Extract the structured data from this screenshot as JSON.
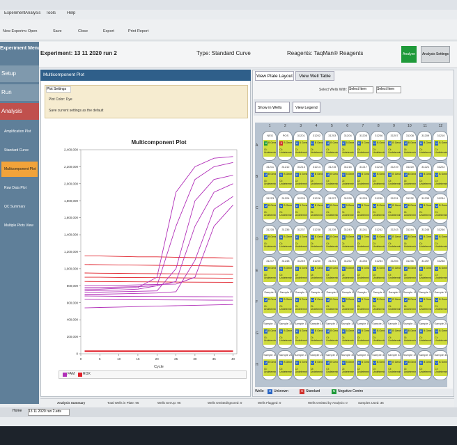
{
  "window": {
    "menu": [
      "Experiment",
      "Analysis",
      "Tools",
      "Help"
    ],
    "toolbar": [
      "New Experiment",
      "Open",
      "Save",
      "Close",
      "Export",
      "Print Report"
    ]
  },
  "header": {
    "experiment": "Experiment: 13 11 2020 run 2",
    "type": "Type: Standard Curve",
    "reagents": "Reagents: TaqMan® Reagents",
    "analyze": "Analyze",
    "settings": "Analysis Settings"
  },
  "sidebar": {
    "title": "Experiment Menu",
    "sections": [
      "Setup",
      "Run",
      "Analysis"
    ],
    "items": [
      "Amplification Plot",
      "Standard Curve",
      "Multicomponent Plot",
      "Raw Data Plot",
      "QC Summary",
      "Multiple Plots View"
    ]
  },
  "left_panel": {
    "title": "Multicomponent Plot",
    "settings_tab": "Plot Settings",
    "plot_color": "Plot Color: Dye",
    "save_default": "Save current settings as the default"
  },
  "plot": {
    "type": "line",
    "title": "Multicomponent Plot",
    "xlabel": "Cycle",
    "x": [
      1,
      5,
      10,
      15,
      20,
      25,
      30,
      35,
      40
    ],
    "xlim": [
      0,
      41
    ],
    "xticks": [
      0,
      5,
      10,
      15,
      20,
      25,
      30,
      35,
      40
    ],
    "ylim": [
      0,
      2400000
    ],
    "yticks": [
      {
        "value": 0,
        "label": "0"
      },
      {
        "value": 200000,
        "label": "200,000"
      },
      {
        "value": 400000,
        "label": "400,000"
      },
      {
        "value": 600000,
        "label": "600,000"
      },
      {
        "value": 800000,
        "label": "800,000"
      },
      {
        "value": 1000000,
        "label": "1,000,000"
      },
      {
        "value": 1200000,
        "label": "1,200,000"
      },
      {
        "value": 1400000,
        "label": "1,400,000"
      },
      {
        "value": 1600000,
        "label": "1,600,000"
      },
      {
        "value": 1800000,
        "label": "1,800,000"
      },
      {
        "value": 2000000,
        "label": "2,000,000"
      },
      {
        "value": 2200000,
        "label": "2,200,000"
      },
      {
        "value": 2400000,
        "label": "2,400,000"
      }
    ],
    "legend": [
      {
        "name": "FAM",
        "color": "#b12fb8"
      },
      {
        "name": "ROX",
        "color": "#e0202a"
      }
    ],
    "series": [
      {
        "color": "#e0202a",
        "values": [
          1150000,
          1150000,
          1145000,
          1140000,
          1140000,
          1135000,
          1130000,
          1130000,
          1125000
        ]
      },
      {
        "color": "#e0202a",
        "values": [
          1050000,
          1048000,
          1045000,
          1043000,
          1040000,
          1038000,
          1035000,
          1032000,
          1030000
        ]
      },
      {
        "color": "#e0202a",
        "values": [
          950000,
          948000,
          946000,
          944000,
          942000,
          940000,
          938000,
          936000,
          935000
        ]
      },
      {
        "color": "#e0202a",
        "values": [
          900000,
          900000,
          898000,
          896000,
          895000,
          893000,
          891000,
          890000,
          888000
        ]
      },
      {
        "color": "#e0202a",
        "values": [
          850000,
          849000,
          848000,
          846000,
          845000,
          843000,
          842000,
          841000,
          840000
        ]
      },
      {
        "color": "#e0202a",
        "values": [
          30000,
          30000,
          30000,
          30000,
          30000,
          30000,
          30000,
          30000,
          30000
        ]
      },
      {
        "color": "#b12fb8",
        "values": [
          760000,
          760000,
          770000,
          780000,
          900000,
          1900000,
          2200000,
          2300000,
          2320000
        ]
      },
      {
        "color": "#b12fb8",
        "values": [
          740000,
          745000,
          750000,
          760000,
          800000,
          1500000,
          2050000,
          2200000,
          2250000
        ]
      },
      {
        "color": "#b12fb8",
        "values": [
          720000,
          725000,
          730000,
          735000,
          740000,
          1000000,
          1800000,
          2050000,
          2100000
        ]
      },
      {
        "color": "#b12fb8",
        "values": [
          780000,
          780000,
          785000,
          790000,
          800000,
          850000,
          1500000,
          1900000,
          2000000
        ]
      },
      {
        "color": "#b12fb8",
        "values": [
          700000,
          700000,
          705000,
          710000,
          715000,
          730000,
          1100000,
          1700000,
          1850000
        ]
      },
      {
        "color": "#b12fb8",
        "values": [
          800000,
          800000,
          805000,
          810000,
          815000,
          820000,
          900000,
          1500000,
          1750000
        ]
      },
      {
        "color": "#b12fb8",
        "values": [
          680000,
          678000,
          676000,
          675000,
          674000,
          673000,
          672000,
          671000,
          670000
        ]
      },
      {
        "color": "#b12fb8",
        "values": [
          640000,
          638000,
          636000,
          635000,
          634000,
          633000,
          632000,
          631000,
          630000
        ]
      },
      {
        "color": "#b12fb8",
        "values": [
          540000,
          545000,
          550000,
          555000,
          560000,
          565000,
          570000,
          575000,
          580000
        ]
      }
    ]
  },
  "right_panel": {
    "tabs": [
      "View Plate Layout",
      "View Well Table"
    ],
    "select_label": "Select Wells With:",
    "select_item": "Select Item",
    "show_in_wells": "Show in Wells",
    "view_legend": "View Legend"
  },
  "plate": {
    "columns": [
      "1",
      "2",
      "3",
      "4",
      "5",
      "6",
      "7",
      "8",
      "9",
      "10",
      "11",
      "12"
    ],
    "target": "B Gene",
    "ct": "Ct: Undetermined",
    "rows": [
      {
        "label": "A",
        "names": [
          "NEG",
          "POS",
          "31201",
          "31202",
          "31203",
          "31204",
          "31205",
          "31206",
          "31207",
          "31208",
          "31209",
          "31210"
        ],
        "tasks": [
          "N",
          "S",
          "U",
          "U",
          "U",
          "U",
          "U",
          "U",
          "U",
          "U",
          "U",
          "U"
        ]
      },
      {
        "label": "B",
        "names": [
          "31211",
          "31212",
          "31213",
          "31214",
          "31215",
          "31216",
          "31217",
          "31218",
          "31219",
          "31220",
          "31221",
          "31222"
        ],
        "tasks": [
          "U",
          "U",
          "U",
          "U",
          "U",
          "U",
          "U",
          "U",
          "U",
          "U",
          "U",
          "U"
        ]
      },
      {
        "label": "C",
        "names": [
          "31223",
          "31224",
          "31225",
          "31226",
          "31227",
          "31228",
          "31229",
          "31230",
          "31231",
          "31232",
          "31233",
          "31234"
        ],
        "tasks": [
          "U",
          "U",
          "U",
          "U",
          "U",
          "U",
          "U",
          "U",
          "U",
          "U",
          "U",
          "U"
        ]
      },
      {
        "label": "D",
        "names": [
          "31235",
          "31236",
          "31237",
          "31238",
          "31239",
          "31240",
          "31241",
          "31242",
          "31243",
          "31244",
          "31245",
          "31246"
        ],
        "tasks": [
          "U",
          "U",
          "U",
          "U",
          "U",
          "U",
          "U",
          "U",
          "U",
          "U",
          "U",
          "U"
        ]
      },
      {
        "label": "E",
        "names": [
          "31247",
          "31248",
          "31249",
          "31250",
          "31251",
          "31252",
          "31253",
          "31254",
          "31255",
          "31256",
          "31257",
          "31258"
        ],
        "tasks": [
          "U",
          "U",
          "U",
          "U",
          "U",
          "U",
          "U",
          "U",
          "U",
          "U",
          "U",
          "U"
        ]
      },
      {
        "label": "F",
        "names": [
          "Sample 1",
          "Sample 2",
          "Sample 3",
          "Sample 4",
          "Sample 5",
          "Sample 6",
          "Sample 7",
          "Sample 8",
          "Sample 9",
          "Sample 10",
          "Sample 11",
          "Sample 12"
        ],
        "tasks": [
          "U",
          "U",
          "U",
          "U",
          "U",
          "U",
          "U",
          "U",
          "U",
          "U",
          "U",
          "U"
        ]
      },
      {
        "label": "G",
        "names": [
          "Sample 13",
          "Sample 14",
          "Sample 15",
          "Sample 16",
          "Sample 17",
          "Sample 18",
          "Sample 19",
          "Sample 20",
          "Sample 21",
          "Sample 22",
          "Sample 23",
          "Sample 24"
        ],
        "tasks": [
          "U",
          "U",
          "U",
          "U",
          "U",
          "U",
          "U",
          "U",
          "U",
          "U",
          "U",
          "U"
        ]
      },
      {
        "label": "H",
        "names": [
          "Sample 25",
          "Sample 26",
          "Sample 27",
          "Sample 28",
          "Sample 29",
          "Sample 30",
          "Sample 31",
          "Sample 32",
          "Sample 33",
          "Sample 34",
          "Sample 35",
          "Sample 36"
        ],
        "tasks": [
          "U",
          "U",
          "U",
          "U",
          "U",
          "U",
          "U",
          "U",
          "U",
          "U",
          "U",
          "U"
        ]
      }
    ],
    "legend": {
      "label": "Wells:",
      "items": [
        {
          "code": "U",
          "text": "Unknown"
        },
        {
          "code": "S",
          "text": "Standard"
        },
        {
          "code": "N",
          "text": "Negative Control"
        }
      ]
    }
  },
  "status": [
    "Analysis Summary",
    "Total Wells in Plate: 96",
    "Wells Set Up: 96",
    "Wells Omitted/Ignored: 0",
    "Wells Flagged: 0",
    "Wells Omitted by Analysis: 0",
    "Samples Used: 36"
  ],
  "taskbar": {
    "home": "Home",
    "tab": "13 11 2020 run 2.eds"
  }
}
